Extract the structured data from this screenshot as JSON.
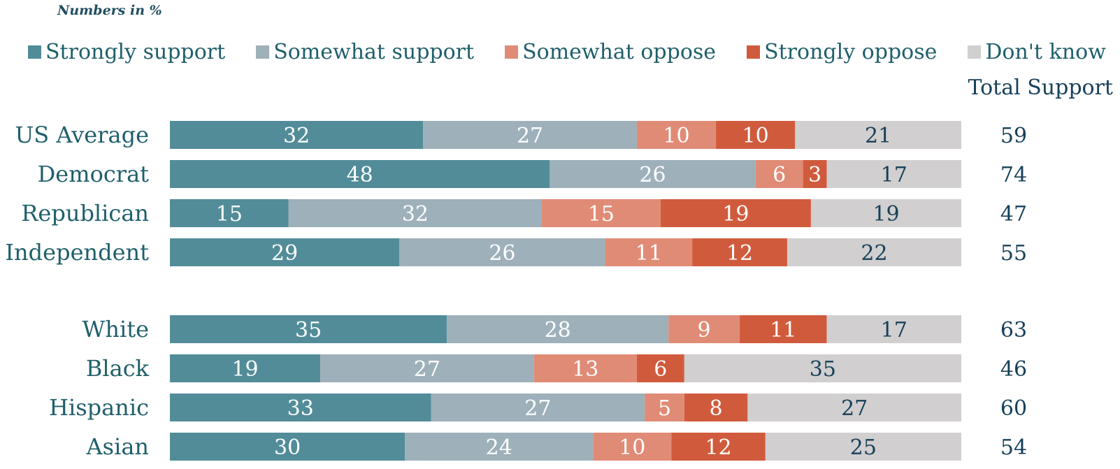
{
  "note": "Numbers in %",
  "total_support_label": "Total Support",
  "chart_data": {
    "type": "bar",
    "orientation": "horizontal",
    "stacked": true,
    "categories": [
      "US Average",
      "Democrat",
      "Republican",
      "Independent",
      "White",
      "Black",
      "Hispanic",
      "Asian"
    ],
    "series": [
      {
        "name": "Strongly support",
        "color": "#528c99",
        "values": [
          32,
          48,
          15,
          29,
          35,
          19,
          33,
          30
        ]
      },
      {
        "name": "Somewhat support",
        "color": "#9eb0ba",
        "values": [
          27,
          26,
          32,
          26,
          28,
          27,
          27,
          24
        ]
      },
      {
        "name": "Somewhat oppose",
        "color": "#e08b76",
        "values": [
          10,
          6,
          15,
          11,
          9,
          13,
          5,
          10
        ]
      },
      {
        "name": "Strongly oppose",
        "color": "#d05b3c",
        "values": [
          10,
          3,
          19,
          12,
          11,
          6,
          8,
          12
        ]
      },
      {
        "name": "Don't know",
        "color": "#d1cfcf",
        "values": [
          21,
          17,
          19,
          22,
          17,
          35,
          27,
          25
        ]
      }
    ],
    "total_support": [
      59,
      74,
      47,
      55,
      63,
      46,
      60,
      54
    ],
    "xlim": [
      0,
      100
    ],
    "legend_position": "top"
  }
}
